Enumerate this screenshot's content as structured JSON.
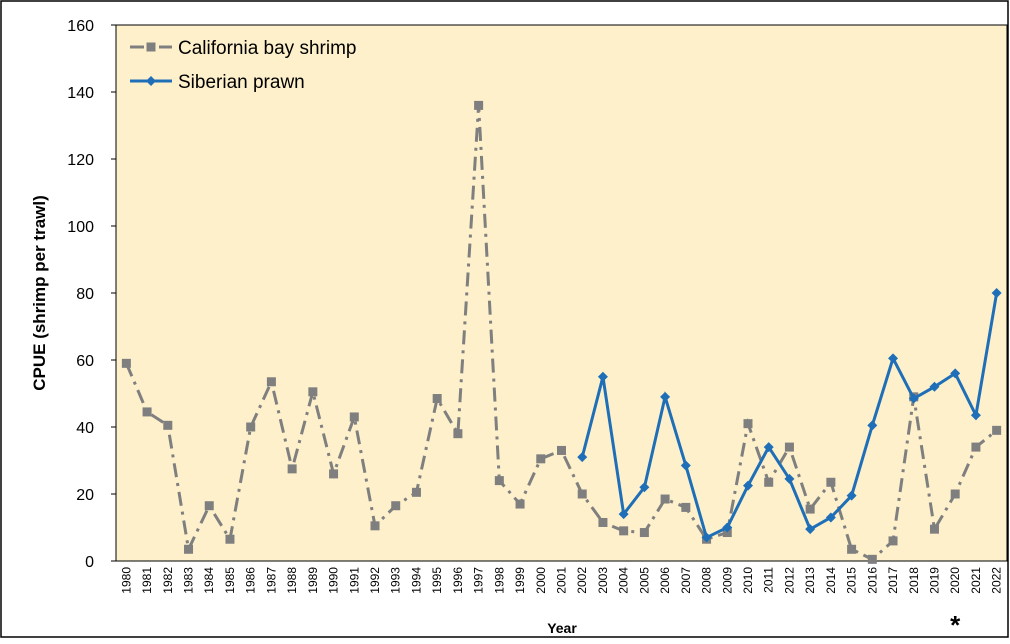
{
  "chart_data": {
    "type": "line",
    "y_label": "CPUE (shrimp per trawl)",
    "x_label": "Year",
    "annotation": "*",
    "annotation_category": "2020",
    "categories": [
      "1980",
      "1981",
      "1982",
      "1983",
      "1984",
      "1985",
      "1986",
      "1987",
      "1988",
      "1989",
      "1990",
      "1991",
      "1992",
      "1993",
      "1994",
      "1995",
      "1996",
      "1997",
      "1998",
      "1999",
      "2000",
      "2001",
      "2002",
      "2003",
      "2004",
      "2005",
      "2006",
      "2007",
      "2008",
      "2009",
      "2010",
      "2011",
      "2012",
      "2013",
      "2014",
      "2015",
      "2016",
      "2017",
      "2018",
      "2019",
      "2020",
      "2021",
      "2022"
    ],
    "series": [
      {
        "name": "California bay shrimp",
        "color": "#7f7f7f",
        "marker": "square",
        "dash": "dashdot",
        "values": [
          59,
          44.5,
          40.5,
          3.5,
          16.5,
          6.5,
          40,
          53.5,
          27.5,
          50.5,
          26,
          43,
          10.5,
          16.5,
          20.5,
          48.5,
          38,
          136,
          24,
          17,
          30.5,
          33,
          20,
          11.5,
          9,
          8.5,
          18.5,
          16,
          6.5,
          8.5,
          41,
          23.5,
          34,
          15.5,
          23.5,
          3.5,
          0.5,
          6,
          49,
          9.5,
          20,
          34,
          39
        ]
      },
      {
        "name": "Siberian prawn",
        "color": "#1f6fb8",
        "marker": "diamond",
        "dash": "solid",
        "values": [
          null,
          null,
          null,
          null,
          null,
          null,
          null,
          null,
          null,
          null,
          null,
          null,
          null,
          null,
          null,
          null,
          null,
          null,
          null,
          null,
          null,
          null,
          31,
          55,
          14,
          22,
          49,
          28.5,
          7,
          10,
          22.5,
          34,
          24.5,
          9.5,
          13,
          19.5,
          40.5,
          60.5,
          48.5,
          52,
          56,
          43.5,
          80
        ]
      }
    ],
    "ylim": [
      0,
      160
    ],
    "yticks": [
      0,
      20,
      40,
      60,
      80,
      100,
      120,
      140,
      160
    ],
    "grid": false,
    "legend": "top-left",
    "background": "#fdf0cb"
  }
}
